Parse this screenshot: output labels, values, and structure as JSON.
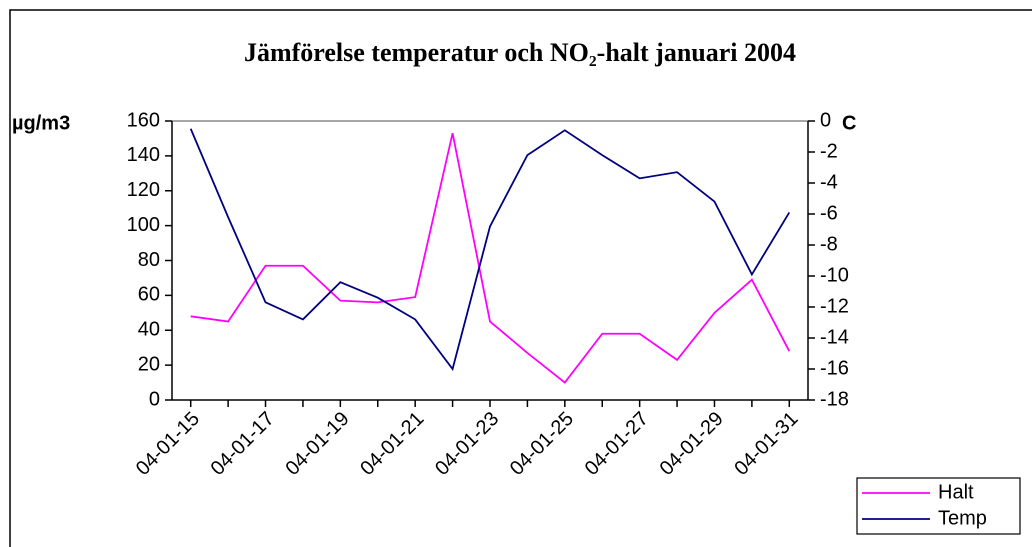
{
  "chart_data": {
    "type": "line",
    "title": "Jämförelse temperatur och NO₂-halt januari 2004",
    "y_label": "µg/m3",
    "y2_label": "C",
    "categories": [
      "04-01-15",
      null,
      "04-01-17",
      null,
      "04-01-19",
      null,
      "04-01-21",
      null,
      "04-01-23",
      null,
      "04-01-25",
      null,
      "04-01-27",
      null,
      "04-01-29",
      null,
      "04-01-31"
    ],
    "series": [
      {
        "name": "Halt",
        "color": "#ff00ff",
        "values": [
          48,
          45,
          77,
          77,
          57,
          56,
          59,
          153,
          45,
          27,
          10,
          38,
          38,
          23,
          50,
          69,
          28
        ]
      },
      {
        "name": "Temp",
        "color": "#000080",
        "axis": "y2",
        "values": [
          -0.5,
          -6.2,
          -11.7,
          -12.8,
          -10.4,
          -11.4,
          -12.8,
          -16,
          -6.8,
          -2.2,
          -0.6,
          -2.2,
          -3.7,
          -3.3,
          -5.2,
          -9.9,
          -5.9
        ]
      }
    ],
    "ylim": [
      0,
      160
    ],
    "yticks": [
      0,
      20,
      40,
      60,
      80,
      100,
      120,
      140,
      160
    ],
    "y2lim": [
      -18,
      0
    ],
    "y2ticks": [
      -18,
      -16,
      -14,
      -12,
      -10,
      -8,
      -6,
      -4,
      -2,
      0
    ],
    "legend": "bottom-right"
  }
}
